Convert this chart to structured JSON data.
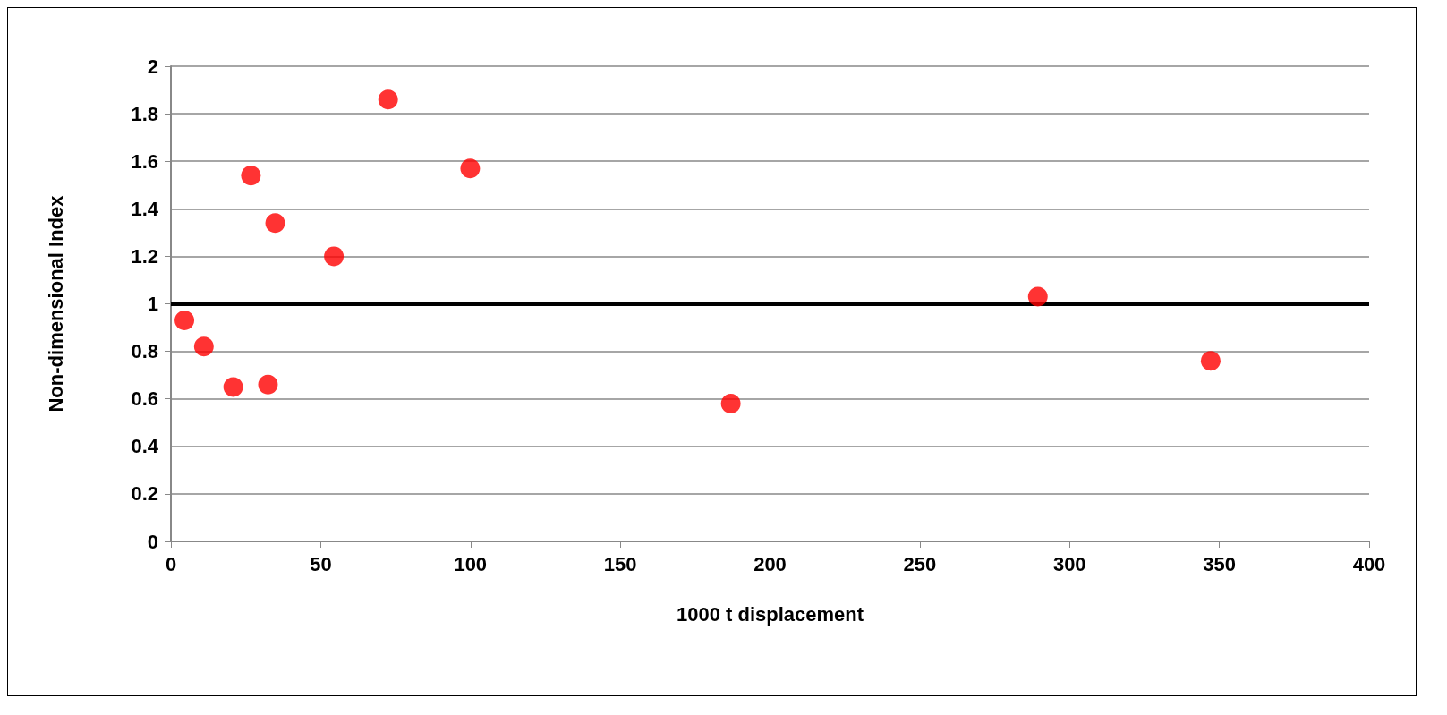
{
  "chart_data": {
    "type": "scatter",
    "xlabel": "1000 t displacement",
    "ylabel": "Non-dimensional Index",
    "x": [
      4.5,
      11,
      20.8,
      26.7,
      32.4,
      34.8,
      54.4,
      72.5,
      99.9,
      186.9,
      289.4,
      347.1
    ],
    "values": [
      0.93,
      0.82,
      0.65,
      1.54,
      0.66,
      1.34,
      1.2,
      1.86,
      1.57,
      0.58,
      1.03,
      0.76
    ],
    "color": "#ff0000",
    "marker": "circle",
    "xlim": [
      0,
      400
    ],
    "xticks": [
      0,
      50,
      100,
      150,
      200,
      250,
      300,
      350,
      400
    ],
    "ylim": [
      0,
      2
    ],
    "yticks": [
      0,
      0.2,
      0.4,
      0.6,
      0.8,
      1,
      1.2,
      1.4,
      1.6,
      1.8,
      2
    ],
    "ref_lines": [
      {
        "axis": "y",
        "value": 1,
        "color": "#000000"
      }
    ],
    "grid": "y"
  }
}
